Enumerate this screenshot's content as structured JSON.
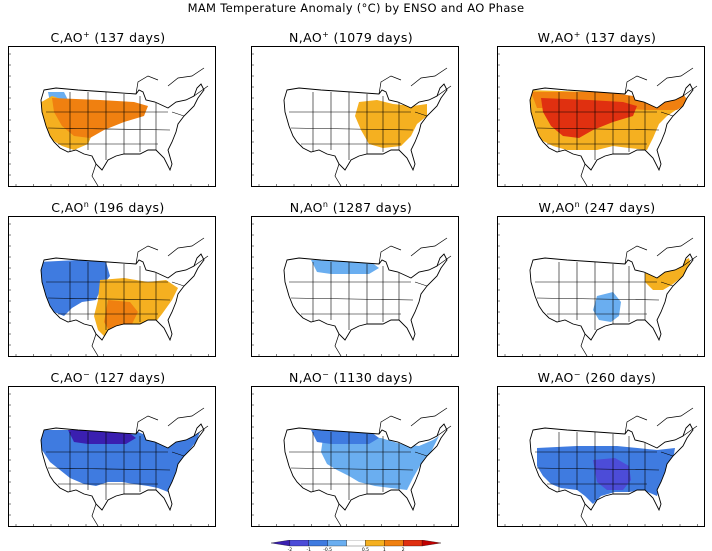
{
  "title": "MAM Temperature Anomaly (°C) by ENSO and AO Phase",
  "panels": [
    {
      "enso": "C",
      "ao_sign": "+",
      "days": "(137 days)",
      "pattern": "c_plus"
    },
    {
      "enso": "N",
      "ao_sign": "+",
      "days": "(1079 days)",
      "pattern": "n_plus"
    },
    {
      "enso": "W",
      "ao_sign": "+",
      "days": "(137 days)",
      "pattern": "w_plus"
    },
    {
      "enso": "C",
      "ao_sign": "n",
      "days": "(196 days)",
      "pattern": "c_neutral"
    },
    {
      "enso": "N",
      "ao_sign": "n",
      "days": "(1287 days)",
      "pattern": "n_neutral"
    },
    {
      "enso": "W",
      "ao_sign": "n",
      "days": "(247 days)",
      "pattern": "w_neutral"
    },
    {
      "enso": "C",
      "ao_sign": "−",
      "days": "(127 days)",
      "pattern": "c_minus"
    },
    {
      "enso": "N",
      "ao_sign": "−",
      "days": "(1130 days)",
      "pattern": "n_minus"
    },
    {
      "enso": "W",
      "ao_sign": "−",
      "days": "(260 days)",
      "pattern": "w_minus"
    }
  ],
  "colorbar": {
    "labels": [
      "-2",
      "-1",
      "-0.5",
      "0.5",
      "1",
      "2"
    ],
    "colors": [
      "#3a1fb0",
      "#4c4cd8",
      "#3f7be0",
      "#6aaef0",
      "#ffffff",
      "#f5b020",
      "#f08010",
      "#e03010",
      "#c00000"
    ]
  },
  "colors": {
    "warm_light": "#f5b020",
    "warm_mid": "#f08010",
    "warm_strong": "#e03010",
    "cool_light": "#6aaef0",
    "cool_mid": "#3f7be0",
    "cool_strong": "#4c4cd8",
    "cool_deep": "#3a1fb0"
  }
}
